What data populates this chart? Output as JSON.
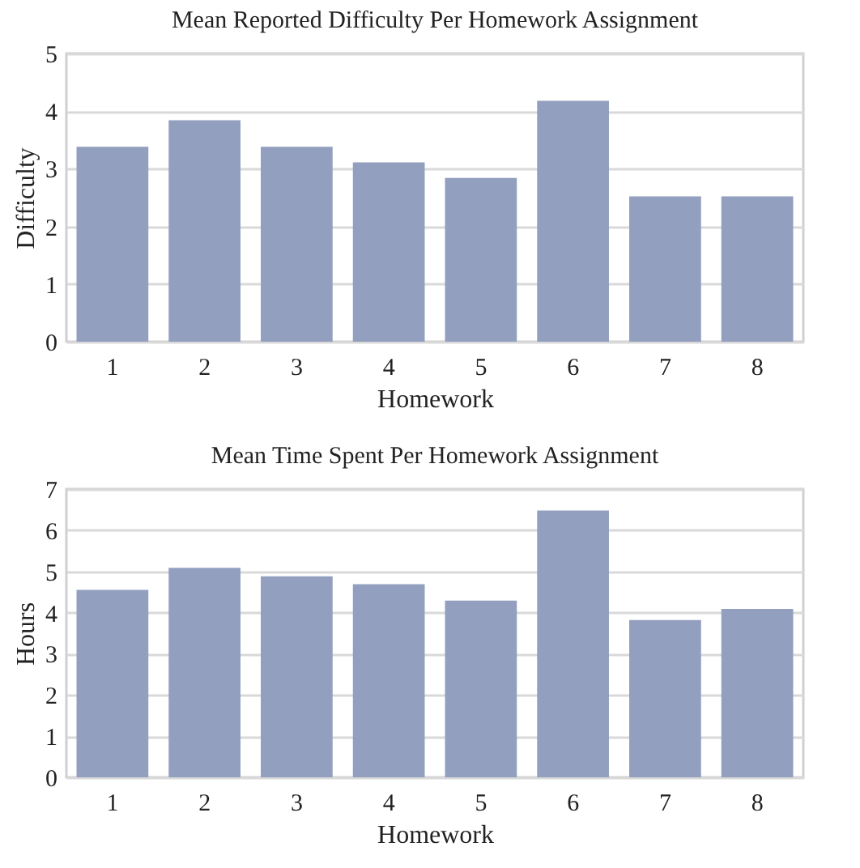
{
  "chart_data": [
    {
      "type": "bar",
      "title": "Mean Reported Difficulty Per Homework Assignment",
      "xlabel": "Homework",
      "ylabel": "Difficulty",
      "categories": [
        "1",
        "2",
        "3",
        "4",
        "5",
        "6",
        "7",
        "8"
      ],
      "values": [
        3.38,
        3.84,
        3.38,
        3.11,
        2.84,
        4.18,
        2.52,
        2.52
      ],
      "color": "#939fbf",
      "ylim": [
        0,
        5
      ],
      "yticks": [
        0,
        1,
        2,
        3,
        4,
        5
      ],
      "grid": "y"
    },
    {
      "type": "bar",
      "title": "Mean Time Spent Per Homework Assignment",
      "xlabel": "Homework",
      "ylabel": "Hours",
      "categories": [
        "1",
        "2",
        "3",
        "4",
        "5",
        "6",
        "7",
        "8"
      ],
      "values": [
        4.55,
        5.09,
        4.88,
        4.69,
        4.29,
        6.48,
        3.82,
        4.09
      ],
      "color": "#939fbf",
      "ylim": [
        0,
        7
      ],
      "yticks": [
        0,
        1,
        2,
        3,
        4,
        5,
        6,
        7
      ],
      "grid": "y"
    }
  ]
}
